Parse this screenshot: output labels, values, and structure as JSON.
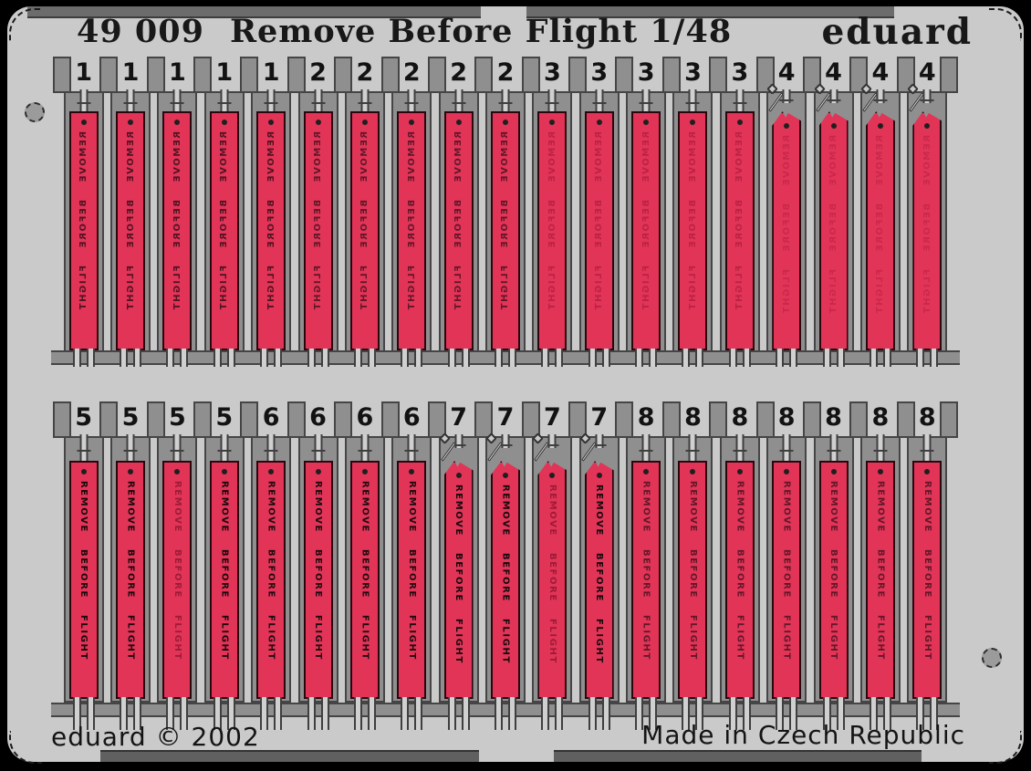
{
  "product": {
    "catalog_number": "49 009",
    "title": "Remove Before Flight 1/48",
    "brand": "eduard",
    "copyright_line": "eduard © 2002",
    "origin_line": "Made in Czech Republic"
  },
  "tag_text": "REMOVE BEFORE FLIGHT",
  "pennant_groups": [
    4,
    7
  ],
  "rows": [
    {
      "id": "top",
      "tags": [
        {
          "n": "1",
          "g": 1
        },
        {
          "n": "1",
          "g": 1
        },
        {
          "n": "1",
          "g": 1
        },
        {
          "n": "1",
          "g": 1
        },
        {
          "n": "1",
          "g": 1
        },
        {
          "n": "2",
          "g": 2
        },
        {
          "n": "2",
          "g": 2
        },
        {
          "n": "2",
          "g": 2
        },
        {
          "n": "2",
          "g": 2
        },
        {
          "n": "2",
          "g": 2
        },
        {
          "n": "3",
          "g": 3
        },
        {
          "n": "3",
          "g": 3
        },
        {
          "n": "3",
          "g": 3
        },
        {
          "n": "3",
          "g": 3
        },
        {
          "n": "3",
          "g": 3
        },
        {
          "n": "4",
          "g": 4
        },
        {
          "n": "4",
          "g": 4
        },
        {
          "n": "4",
          "g": 4
        },
        {
          "n": "4",
          "g": 4
        }
      ]
    },
    {
      "id": "bottom",
      "tags": [
        {
          "n": "5",
          "g": 5
        },
        {
          "n": "5",
          "g": 5
        },
        {
          "n": "5",
          "g": 5,
          "v": "faint"
        },
        {
          "n": "5",
          "g": 5
        },
        {
          "n": "6",
          "g": 6
        },
        {
          "n": "6",
          "g": 6
        },
        {
          "n": "6",
          "g": 6
        },
        {
          "n": "6",
          "g": 6
        },
        {
          "n": "7",
          "g": 7
        },
        {
          "n": "7",
          "g": 7
        },
        {
          "n": "7",
          "g": 7,
          "v": "faint"
        },
        {
          "n": "7",
          "g": 7
        },
        {
          "n": "8",
          "g": 8
        },
        {
          "n": "8",
          "g": 8
        },
        {
          "n": "8",
          "g": 8
        },
        {
          "n": "8",
          "g": 8
        },
        {
          "n": "8",
          "g": 8
        },
        {
          "n": "8",
          "g": 8
        },
        {
          "n": "8",
          "g": 8
        }
      ]
    }
  ],
  "colors": {
    "tag_red": "#e23457",
    "plate_gray": "#cacaca",
    "window_gray": "#8f8f8f",
    "outline_dark": "#454545",
    "frame_black": "#000000"
  }
}
